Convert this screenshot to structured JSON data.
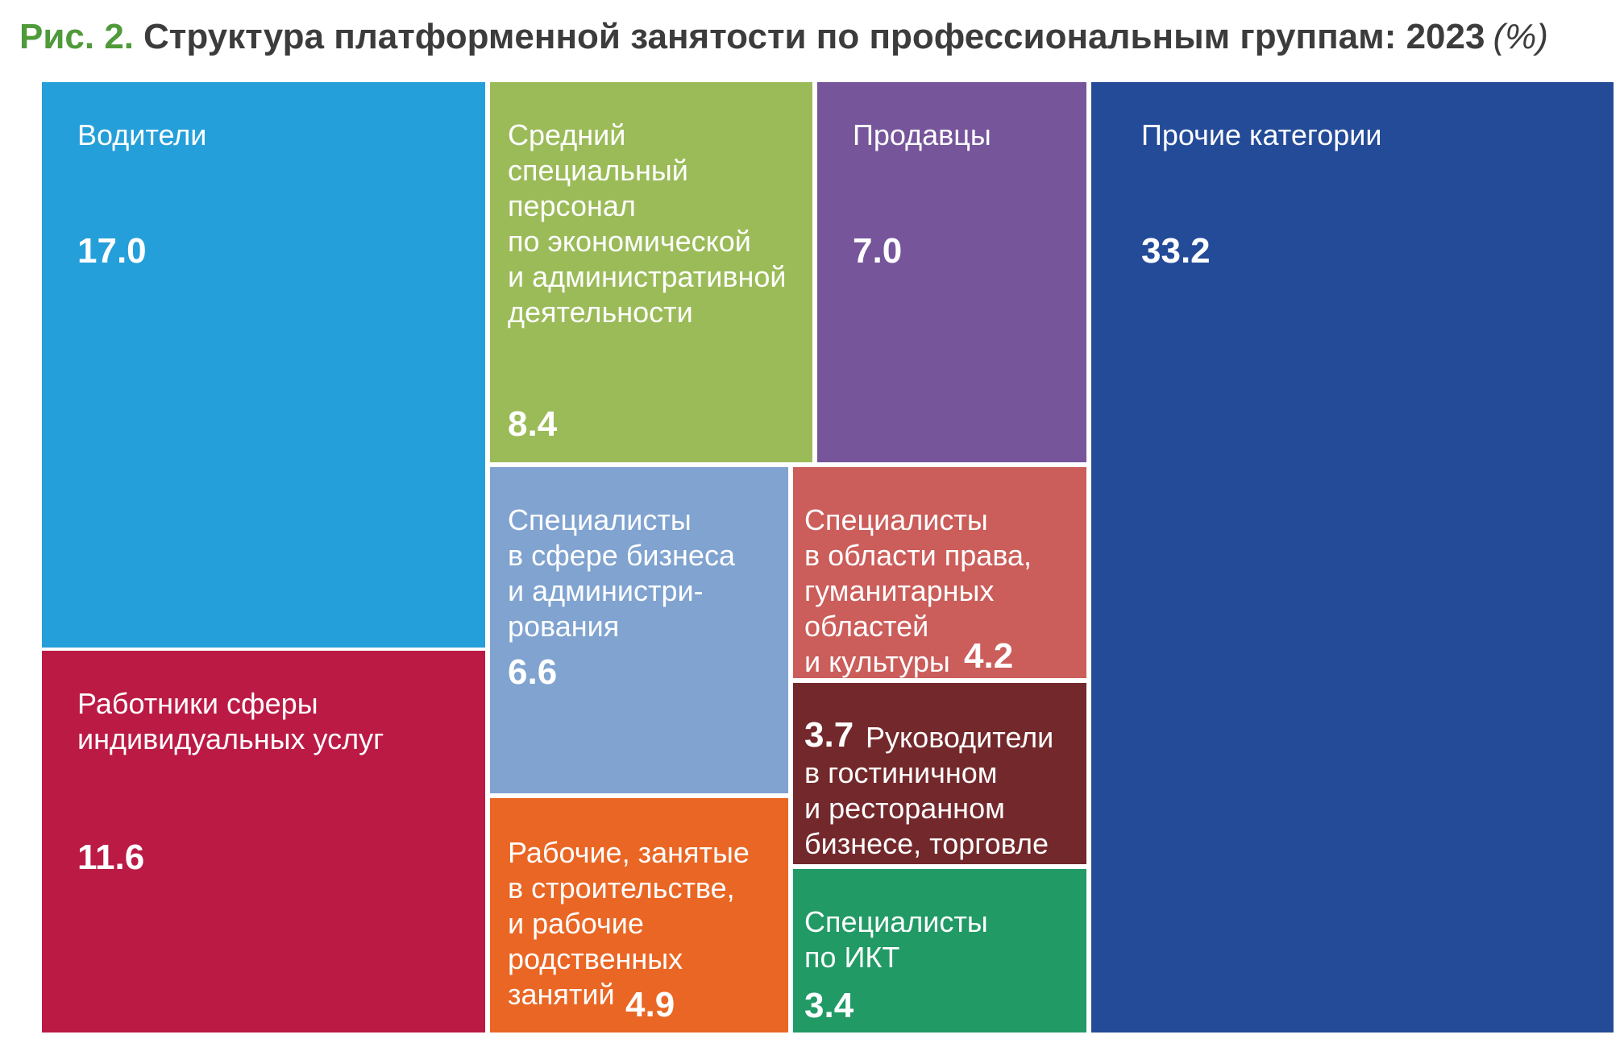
{
  "figure": {
    "prefix": "Рис. 2.",
    "title": "Структура платформенной занятости по профессиональным группам: 2023",
    "unit": "(%)"
  },
  "chart_data": {
    "type": "treemap",
    "title": "Структура платформенной занятости по профессиональным группам: 2023",
    "unit": "%",
    "items": [
      {
        "label": "Водители",
        "value": 17.0,
        "color": "#259fd9"
      },
      {
        "label": "Работники сферы\nиндивидуальных услуг",
        "value": 11.6,
        "color": "#bb1a45"
      },
      {
        "label": "Средний\nспециальный\nперсонал\nпо экономической\nи административной\nдеятельности",
        "value": 8.4,
        "color": "#9bbb59"
      },
      {
        "label": "Продавцы",
        "value": 7.0,
        "color": "#76559b"
      },
      {
        "label": "Специалисты\nв сфере бизнеса\nи администри-\nрования",
        "value": 6.6,
        "color": "#80a3d0"
      },
      {
        "label": "Специалисты\nв области права,\nгуманитарных\nобластей\nи культуры",
        "value": 4.2,
        "color": "#cb5d5a"
      },
      {
        "label": "Руководители\nв гостиничном\nи ресторанном\nбизнесе, торговле",
        "value": 3.7,
        "color": "#73282b"
      },
      {
        "label": "Рабочие, занятые\nв строительстве,\nи рабочие\nродственных\nзанятий",
        "value": 4.9,
        "color": "#ea6624"
      },
      {
        "label": "Специалисты\nпо ИКТ",
        "value": 3.4,
        "color": "#219a66"
      },
      {
        "label": "Прочие категории",
        "value": 33.2,
        "color": "#244b98"
      }
    ]
  }
}
